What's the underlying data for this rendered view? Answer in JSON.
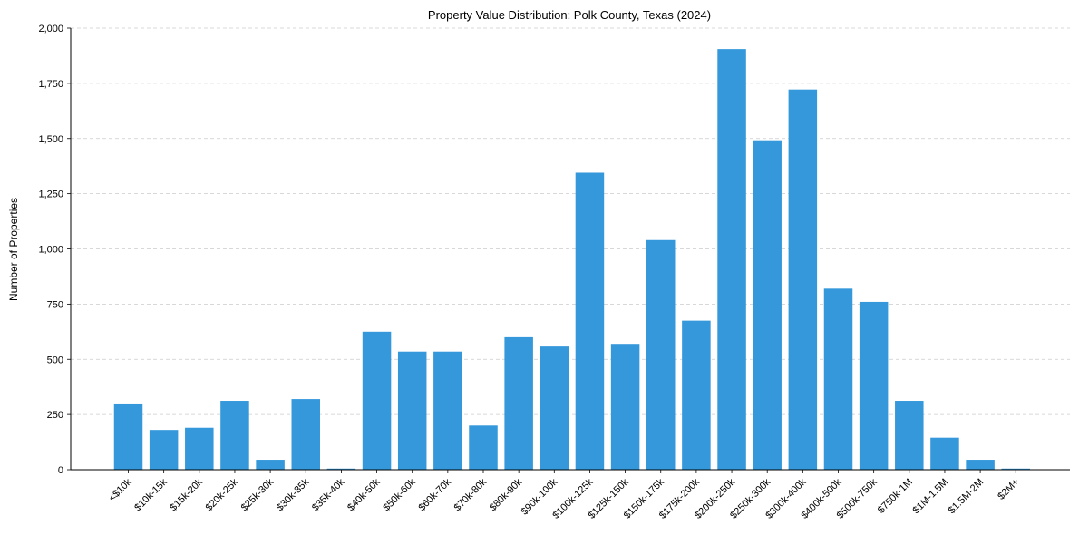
{
  "chart_data": {
    "type": "bar",
    "title": "Property Value Distribution: Polk County, Texas (2024)",
    "xlabel": "",
    "ylabel": "Number of Properties",
    "ylim": [
      0,
      2000
    ],
    "yticks": [
      0,
      250,
      500,
      750,
      1000,
      1250,
      1500,
      1750,
      2000
    ],
    "ytick_labels": [
      "0",
      "250",
      "500",
      "750",
      "1,000",
      "1,250",
      "1,500",
      "1,750",
      "2,000"
    ],
    "grid": "y-dashed",
    "legend": "none",
    "categories": [
      "<$10k",
      "$10k-15k",
      "$15k-20k",
      "$20k-25k",
      "$25k-30k",
      "$30k-35k",
      "$35k-40k",
      "$40k-50k",
      "$50k-60k",
      "$60k-70k",
      "$70k-80k",
      "$80k-90k",
      "$90k-100k",
      "$100k-125k",
      "$125k-150k",
      "$150k-175k",
      "$175k-200k",
      "$200k-250k",
      "$250k-300k",
      "$300k-400k",
      "$400k-500k",
      "$500k-750k",
      "$750k-1M",
      "$1M-1.5M",
      "$1.5M-2M",
      "$2M+"
    ],
    "values": [
      300,
      180,
      190,
      312,
      45,
      320,
      5,
      625,
      535,
      535,
      200,
      600,
      558,
      1345,
      570,
      1040,
      675,
      1905,
      1492,
      1722,
      820,
      760,
      312,
      145,
      45,
      5
    ],
    "colors": {
      "bar": "#3498db",
      "grid": "#cccccc",
      "axis": "#000000",
      "background": "#ffffff"
    }
  }
}
